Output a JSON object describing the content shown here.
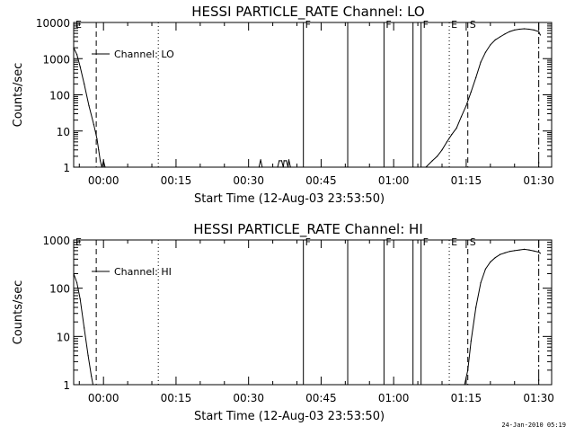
{
  "generated": "24-Jan-2010 05:19",
  "chart_data": [
    {
      "type": "line",
      "title": "HESSI PARTICLE_RATE Channel: LO",
      "xlabel": "Start Time (12-Aug-03 23:53:50)",
      "ylabel": "Counts/sec",
      "yscale": "log",
      "ylim": [
        1,
        10000
      ],
      "xlim": [
        "23:53:50",
        "01:32:40"
      ],
      "xticks": [
        "00:00",
        "00:15",
        "00:30",
        "00:45",
        "01:00",
        "01:15",
        "01:30"
      ],
      "yticks": [
        "1",
        "10",
        "100",
        "1000",
        "10000"
      ],
      "legend": "Channel: LO",
      "markers": [
        {
          "label": "E",
          "time": "23:53:50",
          "style": "solid"
        },
        {
          "label": "",
          "time": "23:58:30",
          "style": "dashed"
        },
        {
          "label": "",
          "time": "00:11:20",
          "style": "dotted"
        },
        {
          "label": "F",
          "time": "00:41:20",
          "style": "solid"
        },
        {
          "label": "",
          "time": "00:50:30",
          "style": "solid"
        },
        {
          "label": "F",
          "time": "00:58:00",
          "style": "solid"
        },
        {
          "label": "",
          "time": "01:04:00",
          "style": "solid"
        },
        {
          "label": "F",
          "time": "01:05:40",
          "style": "solid"
        },
        {
          "label": "E",
          "time": "01:11:30",
          "style": "dotted"
        },
        {
          "label": "S",
          "time": "01:15:20",
          "style": "dashed"
        },
        {
          "label": "",
          "time": "01:30:00",
          "style": "dashdot"
        }
      ],
      "series": [
        {
          "values": [
            [
              "23:53:50",
              2000
            ],
            [
              "23:54:30",
              1300
            ],
            [
              "23:55:10",
              600
            ],
            [
              "23:56:00",
              200
            ],
            [
              "23:57:00",
              50
            ],
            [
              "23:58:00",
              15
            ],
            [
              "23:58:40",
              6
            ],
            [
              "23:59:00",
              3
            ],
            [
              "23:59:20",
              1.5
            ],
            [
              "23:59:40",
              1
            ],
            [
              "00:00:00",
              1.5
            ],
            [
              "00:00:20",
              1
            ]
          ]
        },
        {
          "values": [
            [
              "00:32:10",
              1
            ],
            [
              "00:32:30",
              1.6
            ],
            [
              "00:32:50",
              1
            ]
          ]
        },
        {
          "values": [
            [
              "00:36:00",
              1
            ],
            [
              "00:36:20",
              1.5
            ],
            [
              "00:36:50",
              1.5
            ],
            [
              "00:37:10",
              1
            ],
            [
              "00:37:20",
              1.5
            ],
            [
              "00:37:50",
              1.5
            ],
            [
              "00:38:10",
              1
            ],
            [
              "00:38:20",
              1.6
            ],
            [
              "00:38:40",
              1
            ]
          ]
        },
        {
          "values": [
            [
              "01:06:40",
              1
            ],
            [
              "01:08:00",
              1.5
            ],
            [
              "01:09:00",
              2
            ],
            [
              "01:10:00",
              3
            ],
            [
              "01:11:00",
              5
            ],
            [
              "01:12:00",
              8
            ],
            [
              "01:13:00",
              12
            ],
            [
              "01:14:00",
              25
            ],
            [
              "01:15:00",
              50
            ],
            [
              "01:16:00",
              120
            ],
            [
              "01:17:00",
              300
            ],
            [
              "01:18:00",
              800
            ],
            [
              "01:19:00",
              1500
            ],
            [
              "01:20:00",
              2400
            ],
            [
              "01:21:00",
              3300
            ],
            [
              "01:22:00",
              4000
            ],
            [
              "01:23:00",
              4800
            ],
            [
              "01:24:00",
              5600
            ],
            [
              "01:25:00",
              6200
            ],
            [
              "01:26:00",
              6500
            ],
            [
              "01:27:00",
              6700
            ],
            [
              "01:28:00",
              6500
            ],
            [
              "01:29:00",
              6200
            ],
            [
              "01:30:00",
              5600
            ],
            [
              "01:30:20",
              4500
            ]
          ]
        }
      ]
    },
    {
      "type": "line",
      "title": "HESSI PARTICLE_RATE Channel: HI",
      "xlabel": "Start Time (12-Aug-03 23:53:50)",
      "ylabel": "Counts/sec",
      "yscale": "log",
      "ylim": [
        1,
        1000
      ],
      "xlim": [
        "23:53:50",
        "01:32:40"
      ],
      "xticks": [
        "00:00",
        "00:15",
        "00:30",
        "00:45",
        "01:00",
        "01:15",
        "01:30"
      ],
      "yticks": [
        "1",
        "10",
        "100",
        "1000"
      ],
      "legend": "Channel: HI",
      "markers": [
        {
          "label": "E",
          "time": "23:53:50",
          "style": "solid"
        },
        {
          "label": "",
          "time": "23:58:30",
          "style": "dashed"
        },
        {
          "label": "",
          "time": "00:11:20",
          "style": "dotted"
        },
        {
          "label": "F",
          "time": "00:41:20",
          "style": "solid"
        },
        {
          "label": "",
          "time": "00:50:30",
          "style": "solid"
        },
        {
          "label": "F",
          "time": "00:58:00",
          "style": "solid"
        },
        {
          "label": "",
          "time": "01:04:00",
          "style": "solid"
        },
        {
          "label": "F",
          "time": "01:05:40",
          "style": "solid"
        },
        {
          "label": "E",
          "time": "01:11:30",
          "style": "dotted"
        },
        {
          "label": "S",
          "time": "01:15:20",
          "style": "dashed"
        },
        {
          "label": "",
          "time": "01:30:00",
          "style": "dashdot"
        }
      ],
      "series": [
        {
          "values": [
            [
              "23:53:50",
              200
            ],
            [
              "23:54:30",
              130
            ],
            [
              "23:55:10",
              60
            ],
            [
              "23:56:00",
              15
            ],
            [
              "23:56:50",
              4
            ],
            [
              "23:57:30",
              1.5
            ],
            [
              "23:57:50",
              1
            ]
          ]
        },
        {
          "values": [
            [
              "01:14:40",
              1
            ],
            [
              "01:15:20",
              2
            ],
            [
              "01:16:00",
              8
            ],
            [
              "01:17:00",
              40
            ],
            [
              "01:18:00",
              130
            ],
            [
              "01:19:00",
              250
            ],
            [
              "01:20:00",
              350
            ],
            [
              "01:21:00",
              430
            ],
            [
              "01:22:00",
              500
            ],
            [
              "01:23:00",
              540
            ],
            [
              "01:24:00",
              580
            ],
            [
              "01:25:00",
              600
            ],
            [
              "01:26:00",
              620
            ],
            [
              "01:27:00",
              640
            ],
            [
              "01:28:00",
              620
            ],
            [
              "01:29:00",
              590
            ],
            [
              "01:30:00",
              560
            ],
            [
              "01:30:20",
              530
            ]
          ]
        }
      ]
    }
  ]
}
